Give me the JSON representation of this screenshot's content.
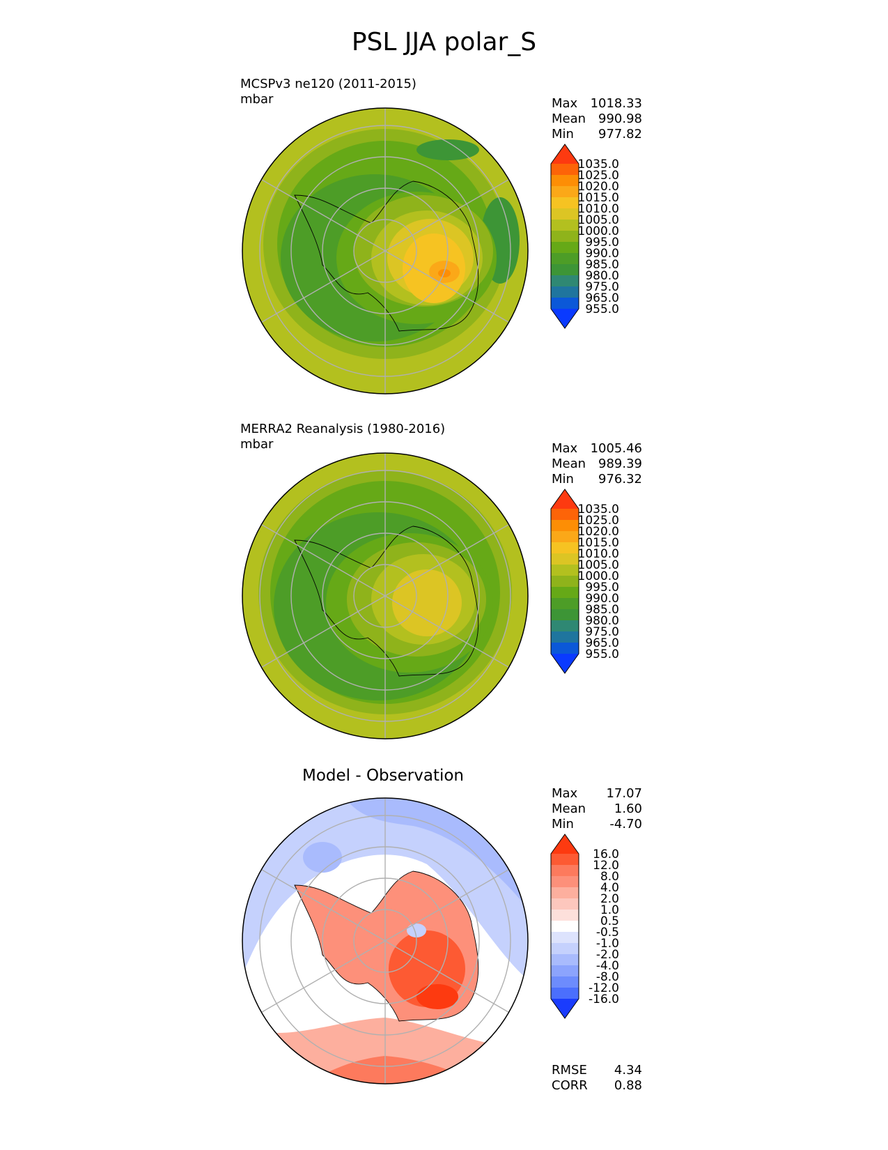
{
  "figure": {
    "title": "PSL JJA polar_S"
  },
  "panels": [
    {
      "id": "model",
      "title": "MCSPv3 ne120 (2011-2015)",
      "units": "mbar",
      "stats": [
        {
          "label": "Max",
          "value": "1018.33"
        },
        {
          "label": "Mean",
          "value": "990.98"
        },
        {
          "label": "Min",
          "value": "977.82"
        }
      ],
      "colorbar": {
        "levels": [
          "1035.0",
          "1025.0",
          "1020.0",
          "1015.0",
          "1010.0",
          "1005.0",
          "1000.0",
          "995.0",
          "990.0",
          "985.0",
          "980.0",
          "975.0",
          "965.0",
          "955.0"
        ],
        "colors": [
          "#fd3a10",
          "#fd6408",
          "#fd8e05",
          "#fba818",
          "#f6c322",
          "#dcc524",
          "#b3c01f",
          "#8fb31b",
          "#66a917",
          "#4d9d27",
          "#3d9536",
          "#2f8873",
          "#1f759e",
          "#0b58d8",
          "#0a3aff"
        ]
      }
    },
    {
      "id": "obs",
      "title": "MERRA2 Reanalysis (1980-2016)",
      "units": "mbar",
      "stats": [
        {
          "label": "Max",
          "value": "1005.46"
        },
        {
          "label": "Mean",
          "value": "989.39"
        },
        {
          "label": "Min",
          "value": "976.32"
        }
      ],
      "colorbar": {
        "levels": [
          "1035.0",
          "1025.0",
          "1020.0",
          "1015.0",
          "1010.0",
          "1005.0",
          "1000.0",
          "995.0",
          "990.0",
          "985.0",
          "980.0",
          "975.0",
          "965.0",
          "955.0"
        ],
        "colors": [
          "#fd3a10",
          "#fd6408",
          "#fd8e05",
          "#fba818",
          "#f6c322",
          "#dcc524",
          "#b3c01f",
          "#8fb31b",
          "#66a917",
          "#4d9d27",
          "#3d9536",
          "#2f8873",
          "#1f759e",
          "#0b58d8",
          "#0a3aff"
        ]
      }
    },
    {
      "id": "diff",
      "title": "Model - Observation",
      "units": "",
      "stats": [
        {
          "label": "Max",
          "value": "17.07"
        },
        {
          "label": "Mean",
          "value": "1.60"
        },
        {
          "label": "Min",
          "value": "-4.70"
        }
      ],
      "colorbar": {
        "levels": [
          "16.0",
          "12.0",
          "8.0",
          "4.0",
          "2.0",
          "1.0",
          "0.5",
          "-0.5",
          "-1.0",
          "-2.0",
          "-4.0",
          "-8.0",
          "-12.0",
          "-16.0"
        ],
        "colors": [
          "#fd3a10",
          "#fd5a33",
          "#fd7a5d",
          "#fd907a",
          "#fdaf9e",
          "#fdc7bd",
          "#fde0db",
          "#ffffff",
          "#dde3fd",
          "#c5d1fd",
          "#a9bbfd",
          "#8ca4fd",
          "#6d8cfd",
          "#4b6ffd",
          "#1a3cfd"
        ]
      },
      "metrics": [
        {
          "label": "RMSE",
          "value": "4.34"
        },
        {
          "label": "CORR",
          "value": "0.88"
        }
      ]
    }
  ]
}
